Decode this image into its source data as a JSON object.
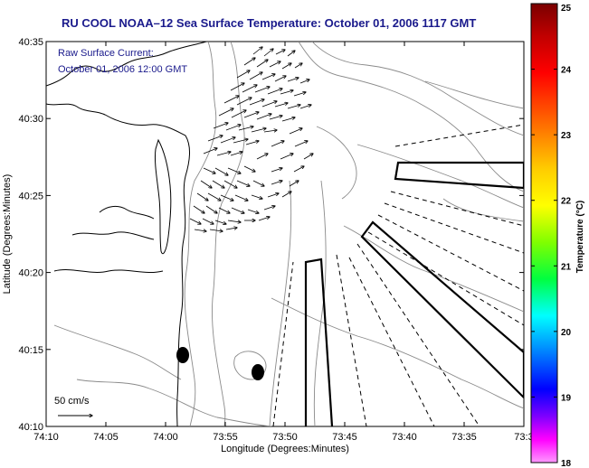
{
  "title": "RU COOL  NOAA–12  Sea Surface Temperature:  October 01, 2006 1117 GMT",
  "current_label": "Raw Surface Current:",
  "current_time": "October 01, 2006 12:00 GMT",
  "scale_label": "50 cm/s",
  "x_axis": {
    "label": "Longitude (Degrees:Minutes)",
    "ticks": [
      "74:10",
      "74:05",
      "74:00",
      "73:55",
      "73:50",
      "73:45",
      "73:40",
      "73:35",
      "73:3"
    ]
  },
  "y_axis": {
    "label": "Latitude (Degrees:Minutes)",
    "ticks": [
      "40:35",
      "40:30",
      "40:25",
      "40:20",
      "40:15",
      "40:10"
    ]
  },
  "colorbar": {
    "label": "Temperature (°C)",
    "ticks": [
      "25",
      "24",
      "23",
      "22",
      "21",
      "20",
      "19",
      "18"
    ],
    "colors": [
      "#8b0000",
      "#ff0000",
      "#ff8c00",
      "#ffff00",
      "#00ff00",
      "#00ffff",
      "#0000ff",
      "#ff00ff",
      "#ff88ff"
    ]
  },
  "colors": {
    "title": "#1a1a8c",
    "contour": "#8a8a8a",
    "coastline": "#000000"
  }
}
